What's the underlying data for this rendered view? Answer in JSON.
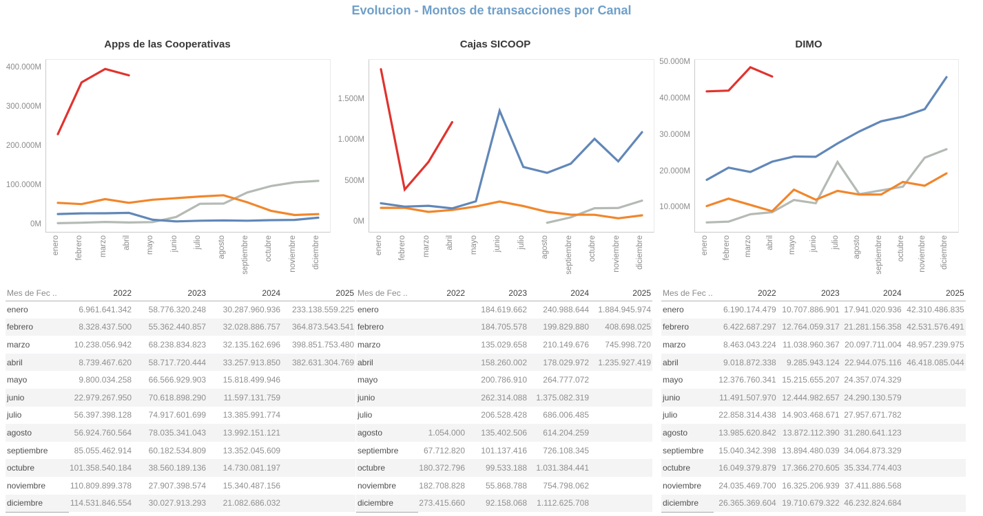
{
  "page": {
    "title": "Evolucion - Montos de transacciones por Canal"
  },
  "colors": {
    "title": "#6f9fc9",
    "2022": "#b4bab4",
    "2023": "#f1862b",
    "2024": "#6187b8",
    "2025": "#e0332e"
  },
  "months": [
    "enero",
    "febrero",
    "marzo",
    "abril",
    "mayo",
    "junio",
    "julio",
    "agosto",
    "septiembre",
    "octubre",
    "noviembre",
    "diciembre"
  ],
  "month_header": "Mes de Fec ..",
  "years": [
    "2022",
    "2023",
    "2024",
    "2025"
  ],
  "chart_data": [
    {
      "type": "line",
      "title": "Apps de las Cooperativas",
      "x": [
        "enero",
        "febrero",
        "marzo",
        "abril",
        "mayo",
        "junio",
        "julio",
        "agosto",
        "septiembre",
        "octubre",
        "noviembre",
        "diciembre"
      ],
      "unit": "millions",
      "grid": false,
      "legend": "none",
      "ylim": [
        -15000,
        422000
      ],
      "yticks": [
        {
          "v": 0,
          "label": "0M"
        },
        {
          "v": 100000,
          "label": "100.000M"
        },
        {
          "v": 200000,
          "label": "200.000M"
        },
        {
          "v": 300000,
          "label": "300.000M"
        },
        {
          "v": 400000,
          "label": "400.000M"
        }
      ],
      "series": [
        {
          "name": "2022",
          "values": [
            6961.6,
            8328.4,
            10238.1,
            8739.5,
            9800.0,
            22979.3,
            56397.4,
            56924.8,
            85055.5,
            101358.5,
            110809.9,
            114531.8
          ]
        },
        {
          "name": "2023",
          "values": [
            58776.3,
            55362.4,
            68238.8,
            58717.7,
            66566.9,
            70618.9,
            74917.6,
            78035.3,
            60182.5,
            38560.2,
            27907.4,
            30027.9
          ]
        },
        {
          "name": "2024",
          "values": [
            30288.0,
            32028.9,
            32135.2,
            33257.9,
            15818.5,
            11597.1,
            13386.0,
            13992.2,
            13352.0,
            14730.1,
            15340.5,
            21082.7
          ]
        },
        {
          "name": "2025",
          "values": [
            233138.6,
            364873.5,
            398851.8,
            382631.3,
            null,
            null,
            null,
            null,
            null,
            null,
            null,
            null
          ]
        }
      ]
    },
    {
      "type": "line",
      "title": "Cajas SICOOP",
      "x": [
        "enero",
        "febrero",
        "marzo",
        "abril",
        "mayo",
        "junio",
        "julio",
        "agosto",
        "septiembre",
        "octubre",
        "noviembre",
        "diciembre"
      ],
      "unit": "millions",
      "grid": false,
      "legend": "none",
      "ylim": [
        -110,
        2000
      ],
      "yticks": [
        {
          "v": 0,
          "label": "0M"
        },
        {
          "v": 500,
          "label": "500M"
        },
        {
          "v": 1000,
          "label": "1.000M"
        },
        {
          "v": 1500,
          "label": "1.500M"
        }
      ],
      "series": [
        {
          "name": "2022",
          "values": [
            null,
            null,
            null,
            null,
            null,
            null,
            null,
            1.1,
            67.7,
            180.4,
            182.7,
            273.4
          ]
        },
        {
          "name": "2023",
          "values": [
            184.6,
            184.7,
            135.0,
            158.3,
            200.8,
            262.3,
            206.5,
            135.4,
            101.1,
            99.5,
            55.9,
            92.2
          ]
        },
        {
          "name": "2024",
          "values": [
            241.0,
            199.8,
            210.1,
            178.0,
            264.8,
            1375.1,
            686.0,
            614.2,
            726.1,
            1031.4,
            754.8,
            1112.6
          ]
        },
        {
          "name": "2025",
          "values": [
            1884.9,
            408.7,
            746.0,
            1235.9,
            null,
            null,
            null,
            null,
            null,
            null,
            null,
            null
          ]
        }
      ]
    },
    {
      "type": "line",
      "title": "DIMO",
      "x": [
        "enero",
        "febrero",
        "marzo",
        "abril",
        "mayo",
        "junio",
        "julio",
        "agosto",
        "septiembre",
        "octubre",
        "noviembre",
        "diciembre"
      ],
      "unit": "millions",
      "grid": false,
      "legend": "none",
      "ylim": [
        3600,
        51000
      ],
      "yticks": [
        {
          "v": 10000,
          "label": "10.000M"
        },
        {
          "v": 20000,
          "label": "20.000M"
        },
        {
          "v": 30000,
          "label": "30.000M"
        },
        {
          "v": 40000,
          "label": "40.000M"
        },
        {
          "v": 50000,
          "label": "50.000M"
        }
      ],
      "series": [
        {
          "name": "2022",
          "values": [
            6190.2,
            6422.7,
            8463.0,
            9018.9,
            12376.8,
            11491.5,
            22858.3,
            13985.6,
            15040.3,
            16049.4,
            24035.5,
            26365.4
          ]
        },
        {
          "name": "2023",
          "values": [
            10707.9,
            12764.1,
            11039.0,
            9285.9,
            15215.7,
            12445.0,
            14903.5,
            13872.1,
            13894.5,
            17366.3,
            16325.2,
            19710.7
          ]
        },
        {
          "name": "2024",
          "values": [
            17941.0,
            21281.2,
            20097.7,
            22944.1,
            24357.1,
            24290.1,
            27957.7,
            31280.6,
            34064.9,
            35334.8,
            37411.9,
            46232.8
          ]
        },
        {
          "name": "2025",
          "values": [
            42310.5,
            42531.6,
            48957.2,
            46418.1,
            null,
            null,
            null,
            null,
            null,
            null,
            null,
            null
          ]
        }
      ]
    }
  ],
  "tables": [
    {
      "title": "Apps de las Cooperativas",
      "rows": [
        [
          "6.961.641.342",
          "58.776.320.248",
          "30.287.960.936",
          "233.138.559.225"
        ],
        [
          "8.328.437.500",
          "55.362.440.857",
          "32.028.886.757",
          "364.873.543.541"
        ],
        [
          "10.238.056.942",
          "68.238.834.823",
          "32.135.162.696",
          "398.851.753.480"
        ],
        [
          "8.739.467.620",
          "58.717.720.444",
          "33.257.913.850",
          "382.631.304.769"
        ],
        [
          "9.800.034.258",
          "66.566.929.903",
          "15.818.499.946",
          ""
        ],
        [
          "22.979.267.950",
          "70.618.898.290",
          "11.597.131.759",
          ""
        ],
        [
          "56.397.398.128",
          "74.917.601.699",
          "13.385.991.774",
          ""
        ],
        [
          "56.924.760.564",
          "78.035.341.043",
          "13.992.151.121",
          ""
        ],
        [
          "85.055.462.914",
          "60.182.534.809",
          "13.352.045.609",
          ""
        ],
        [
          "101.358.540.184",
          "38.560.189.136",
          "14.730.081.197",
          ""
        ],
        [
          "110.809.899.378",
          "27.907.398.574",
          "15.340.487.156",
          ""
        ],
        [
          "114.531.846.554",
          "30.027.913.293",
          "21.082.686.032",
          ""
        ]
      ]
    },
    {
      "title": "Cajas SICOOP",
      "rows": [
        [
          "",
          "184.619.662",
          "240.988.644",
          "1.884.945.974"
        ],
        [
          "",
          "184.705.578",
          "199.829.880",
          "408.698.025"
        ],
        [
          "",
          "135.029.658",
          "210.149.676",
          "745.998.720"
        ],
        [
          "",
          "158.260.002",
          "178.029.972",
          "1.235.927.419"
        ],
        [
          "",
          "200.786.910",
          "264.777.072",
          ""
        ],
        [
          "",
          "262.314.088",
          "1.375.082.319",
          ""
        ],
        [
          "",
          "206.528.428",
          "686.006.485",
          ""
        ],
        [
          "1.054.000",
          "135.402.506",
          "614.204.259",
          ""
        ],
        [
          "67.712.820",
          "101.137.416",
          "726.108.345",
          ""
        ],
        [
          "180.372.796",
          "99.533.188",
          "1.031.384.441",
          ""
        ],
        [
          "182.708.828",
          "55.868.788",
          "754.798.062",
          ""
        ],
        [
          "273.415.660",
          "92.158.068",
          "1.112.625.708",
          ""
        ]
      ]
    },
    {
      "title": "DIMO",
      "rows": [
        [
          "6.190.174.479",
          "10.707.886.901",
          "17.941.020.936",
          "42.310.486.835"
        ],
        [
          "6.422.687.297",
          "12.764.059.317",
          "21.281.156.358",
          "42.531.576.491"
        ],
        [
          "8.463.043.224",
          "11.038.960.367",
          "20.097.711.004",
          "48.957.239.975"
        ],
        [
          "9.018.872.338",
          "9.285.943.124",
          "22.944.075.116",
          "46.418.085.044"
        ],
        [
          "12.376.760.341",
          "15.215.655.207",
          "24.357.074.329",
          ""
        ],
        [
          "11.491.507.970",
          "12.444.982.657",
          "24.290.130.579",
          ""
        ],
        [
          "22.858.314.438",
          "14.903.468.671",
          "27.957.671.782",
          ""
        ],
        [
          "13.985.620.842",
          "13.872.112.390",
          "31.280.641.123",
          ""
        ],
        [
          "15.040.342.398",
          "13.894.480.039",
          "34.064.873.329",
          ""
        ],
        [
          "16.049.379.879",
          "17.366.270.605",
          "35.334.774.403",
          ""
        ],
        [
          "24.035.469.700",
          "16.325.206.939",
          "37.411.886.568",
          ""
        ],
        [
          "26.365.369.604",
          "19.710.679.322",
          "46.232.824.684",
          ""
        ]
      ]
    }
  ]
}
